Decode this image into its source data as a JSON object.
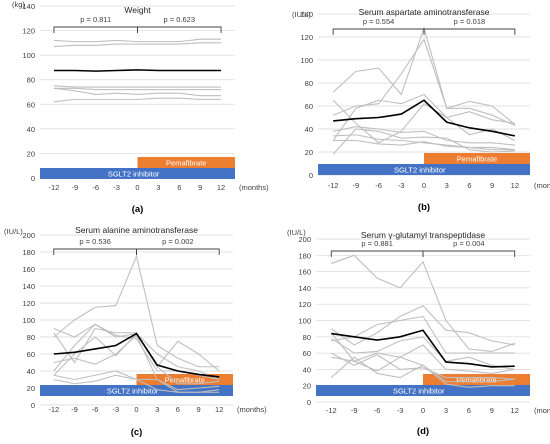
{
  "chart_data": [
    {
      "type": "line",
      "title": "Weight",
      "panel_label": "(a)",
      "y_unit": "(kg)",
      "x_unit": "(months)",
      "x": [
        -12,
        -9,
        -6,
        -3,
        0,
        3,
        6,
        9,
        12
      ],
      "ylim": [
        0,
        140
      ],
      "yticks": [
        0,
        20,
        40,
        60,
        80,
        100,
        120,
        140
      ],
      "grid": true,
      "p_values": [
        "p = 0.811",
        "p = 0.623"
      ],
      "treatments": [
        {
          "label": "SGLT2 inhibitor",
          "x_from": -14,
          "x_to": 14,
          "color": "#4472c4"
        },
        {
          "label": "Pemafibrate",
          "x_from": 0,
          "x_to": 14,
          "color": "#ed7d31"
        }
      ],
      "individual_series": [
        [
          112,
          111,
          111,
          112,
          111,
          111,
          111,
          113,
          113
        ],
        [
          107,
          108,
          108,
          109,
          109,
          109,
          109,
          110,
          110
        ],
        [
          75,
          74,
          74,
          74,
          74,
          74,
          74,
          74,
          74
        ],
        [
          73,
          73,
          72,
          72,
          72,
          72,
          72,
          72,
          72
        ],
        [
          73,
          71,
          68,
          69,
          68,
          69,
          69,
          67,
          67
        ],
        [
          62,
          64,
          64,
          64,
          64,
          65,
          65,
          64,
          64
        ]
      ],
      "mean_series": [
        87.5,
        87.5,
        87,
        87.5,
        88,
        87.5,
        87.5,
        87.5,
        87.5
      ]
    },
    {
      "type": "line",
      "title": "Serum aspartate aminotransferase",
      "panel_label": "(b)",
      "y_unit": "(IU/L)",
      "x_unit": "(months)",
      "x": [
        -12,
        -9,
        -6,
        -3,
        0,
        3,
        6,
        9,
        12
      ],
      "ylim": [
        0,
        140
      ],
      "yticks": [
        0,
        20,
        40,
        60,
        80,
        100,
        120,
        140
      ],
      "grid": true,
      "p_values": [
        "p = 0.554",
        "p = 0.018"
      ],
      "treatments": [
        {
          "label": "SGLT2 inhibitor",
          "x_from": -14,
          "x_to": 14,
          "color": "#4472c4"
        },
        {
          "label": "Pemafibrate",
          "x_from": 0,
          "x_to": 14,
          "color": "#ed7d31"
        }
      ],
      "individual_series": [
        [
          72,
          90,
          93,
          70,
          128,
          58,
          58,
          52,
          43
        ],
        [
          52,
          60,
          62,
          88,
          118,
          58,
          64,
          60,
          44
        ],
        [
          30,
          58,
          65,
          62,
          70,
          50,
          55,
          48,
          45
        ],
        [
          65,
          45,
          28,
          38,
          62,
          50,
          35,
          40,
          30
        ],
        [
          38,
          42,
          40,
          37,
          38,
          30,
          28,
          28,
          26
        ],
        [
          34,
          35,
          31,
          30,
          28,
          26,
          24,
          24,
          22
        ],
        [
          30,
          30,
          27,
          26,
          29,
          25,
          24,
          22,
          22
        ],
        [
          18,
          40,
          38,
          32,
          33,
          32,
          22,
          20,
          21
        ]
      ],
      "mean_series": [
        47,
        49,
        50,
        53,
        65,
        46,
        41,
        38,
        34
      ]
    },
    {
      "type": "line",
      "title": "Serum alanine aminotransferase",
      "panel_label": "(c)",
      "y_unit": "(IU/L)",
      "x_unit": "(months)",
      "x": [
        -12,
        -9,
        -6,
        -3,
        0,
        3,
        6,
        9,
        12
      ],
      "ylim": [
        0,
        200
      ],
      "yticks": [
        0,
        20,
        40,
        60,
        80,
        100,
        120,
        140,
        160,
        180,
        200
      ],
      "grid": true,
      "p_values": [
        "p = 0.536",
        "p = 0.002"
      ],
      "treatments": [
        {
          "label": "SGLT2 inhibitor",
          "x_from": -14,
          "x_to": 14,
          "color": "#4472c4"
        },
        {
          "label": "Pemafibrate",
          "x_from": 0,
          "x_to": 14,
          "color": "#ed7d31"
        }
      ],
      "individual_series": [
        [
          80,
          100,
          115,
          117,
          175,
          70,
          55,
          45,
          45
        ],
        [
          90,
          80,
          95,
          80,
          84,
          45,
          75,
          60,
          40
        ],
        [
          35,
          60,
          80,
          58,
          84,
          60,
          45,
          40,
          30
        ],
        [
          85,
          50,
          90,
          85,
          85,
          45,
          25,
          25,
          28
        ],
        [
          40,
          70,
          95,
          82,
          78,
          40,
          40,
          35,
          30
        ],
        [
          35,
          30,
          35,
          40,
          30,
          30,
          15,
          15,
          18
        ],
        [
          30,
          25,
          28,
          35,
          30,
          18,
          15,
          15,
          15
        ],
        [
          50,
          55,
          48,
          60,
          82,
          30,
          18,
          20,
          22
        ]
      ],
      "mean_series": [
        60,
        62,
        66,
        70,
        84,
        47,
        40,
        36,
        33
      ]
    },
    {
      "type": "line",
      "title": "Serum γ-glutamyl transpeptidase",
      "panel_label": "(d)",
      "y_unit": "(IU/L)",
      "x_unit": "(months)",
      "x": [
        -12,
        -9,
        -6,
        -3,
        0,
        3,
        6,
        9,
        12
      ],
      "ylim": [
        0,
        200
      ],
      "yticks": [
        0,
        20,
        40,
        60,
        80,
        100,
        120,
        140,
        160,
        180,
        200
      ],
      "grid": true,
      "p_values": [
        "p = 0.881",
        "p = 0.004"
      ],
      "treatments": [
        {
          "label": "SGLT2 inhibitor",
          "x_from": -14,
          "x_to": 14,
          "color": "#4472c4"
        },
        {
          "label": "Pemafibrate",
          "x_from": 0,
          "x_to": 14,
          "color": "#ed7d31"
        }
      ],
      "individual_series": [
        [
          170,
          180,
          152,
          140,
          172,
          100,
          65,
          62,
          72
        ],
        [
          90,
          70,
          85,
          105,
          118,
          88,
          85,
          75,
          70
        ],
        [
          75,
          80,
          95,
          100,
          105,
          60,
          60,
          60,
          60
        ],
        [
          78,
          60,
          62,
          75,
          80,
          50,
          55,
          45,
          40
        ],
        [
          55,
          50,
          60,
          55,
          70,
          40,
          38,
          35,
          40
        ],
        [
          60,
          45,
          58,
          40,
          42,
          30,
          30,
          30,
          28
        ],
        [
          30,
          55,
          35,
          30,
          45,
          25,
          25,
          25,
          28
        ],
        [
          85,
          50,
          38,
          55,
          45,
          22,
          18,
          20,
          20
        ]
      ],
      "mean_series": [
        84,
        80,
        76,
        80,
        88,
        49,
        47,
        43,
        44
      ]
    }
  ]
}
